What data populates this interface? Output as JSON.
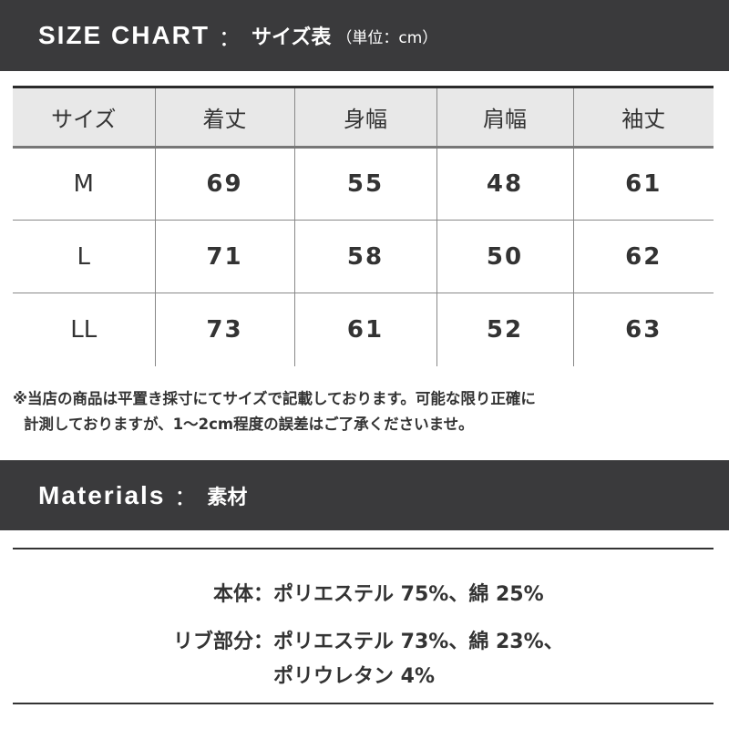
{
  "size_chart": {
    "title_en": "SIZE CHART",
    "separator": "：",
    "title_jp": "サイズ表",
    "unit": "（単位：cm）",
    "headers": [
      "サイズ",
      "着丈",
      "身幅",
      "肩幅",
      "袖丈"
    ],
    "rows": [
      [
        "M",
        "69",
        "55",
        "48",
        "61"
      ],
      [
        "L",
        "71",
        "58",
        "50",
        "62"
      ],
      [
        "LL",
        "73",
        "61",
        "52",
        "63"
      ]
    ],
    "note_line1": "※当店の商品は平置き採寸にてサイズで記載しております。可能な限り正確に",
    "note_line2": "計測しておりますが、1〜2cm程度の誤差はご了承くださいませ。"
  },
  "materials": {
    "title_en": "Materials",
    "separator": "：",
    "title_jp": "素材",
    "items": [
      {
        "label": "本体：",
        "value": "ポリエステル 75%、綿 25%"
      },
      {
        "label": "リブ部分：",
        "value": "ポリエステル 73%、綿 23%、",
        "value2": "ポリウレタン 4%"
      }
    ]
  },
  "colors": {
    "header_bar": "#3a3a3c",
    "table_header_bg": "#e8e8e8"
  }
}
